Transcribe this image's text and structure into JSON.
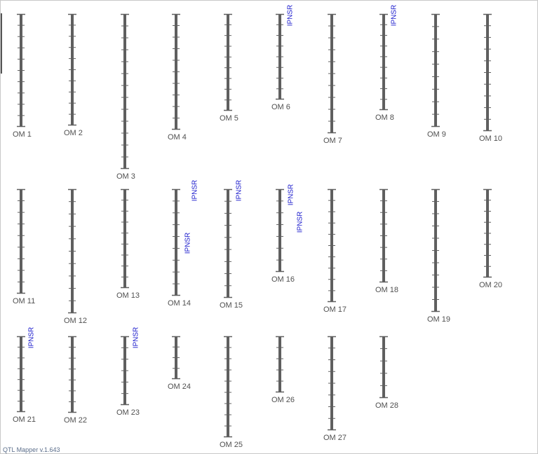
{
  "app": {
    "version_label": "QTL Mapper v.1.643"
  },
  "colors": {
    "chromosome": "#5f5f5f",
    "label": "#505050",
    "qtl": "#1a1acc"
  },
  "chromosomes": [
    {
      "label": "OM 1",
      "markers": 9,
      "qtls": []
    },
    {
      "label": "OM 2",
      "markers": 9,
      "qtls": []
    },
    {
      "label": "OM 3",
      "markers": 12,
      "qtls": []
    },
    {
      "label": "OM 4",
      "markers": 9,
      "qtls": []
    },
    {
      "label": "OM 5",
      "markers": 8,
      "qtls": []
    },
    {
      "label": "OM 6",
      "markers": 7,
      "qtls": [
        "IPNSR"
      ]
    },
    {
      "label": "OM 7",
      "markers": 9,
      "qtls": []
    },
    {
      "label": "OM 8",
      "markers": 8,
      "qtls": [
        "IPNSR"
      ]
    },
    {
      "label": "OM 9",
      "markers": 8,
      "qtls": []
    },
    {
      "label": "OM 10",
      "markers": 9,
      "qtls": []
    },
    {
      "label": "OM 11",
      "markers": 8,
      "qtls": []
    },
    {
      "label": "OM 12",
      "markers": 9,
      "qtls": []
    },
    {
      "label": "OM 13",
      "markers": 8,
      "qtls": []
    },
    {
      "label": "OM 14",
      "markers": 8,
      "qtls": [
        "IPNSR",
        "IPNSR"
      ]
    },
    {
      "label": "OM 15",
      "markers": 8,
      "qtls": [
        "IPNSR"
      ]
    },
    {
      "label": "OM 16",
      "markers": 6,
      "qtls": [
        "IPNSR",
        "IPNSR"
      ]
    },
    {
      "label": "OM 17",
      "markers": 9,
      "qtls": []
    },
    {
      "label": "OM 18",
      "markers": 7,
      "qtls": []
    },
    {
      "label": "OM 19",
      "markers": 9,
      "qtls": []
    },
    {
      "label": "OM 20",
      "markers": 7,
      "qtls": []
    },
    {
      "label": "OM 21",
      "markers": 6,
      "qtls": [
        "IPNSR"
      ]
    },
    {
      "label": "OM 22",
      "markers": 6,
      "qtls": []
    },
    {
      "label": "OM 23",
      "markers": 5,
      "qtls": [
        "IPNSR"
      ]
    },
    {
      "label": "OM 24",
      "markers": 3,
      "qtls": []
    },
    {
      "label": "OM 25",
      "markers": 8,
      "qtls": []
    },
    {
      "label": "OM 26",
      "markers": 4,
      "qtls": []
    },
    {
      "label": "OM 27",
      "markers": 7,
      "qtls": []
    },
    {
      "label": "OM 28",
      "markers": 4,
      "qtls": []
    }
  ]
}
